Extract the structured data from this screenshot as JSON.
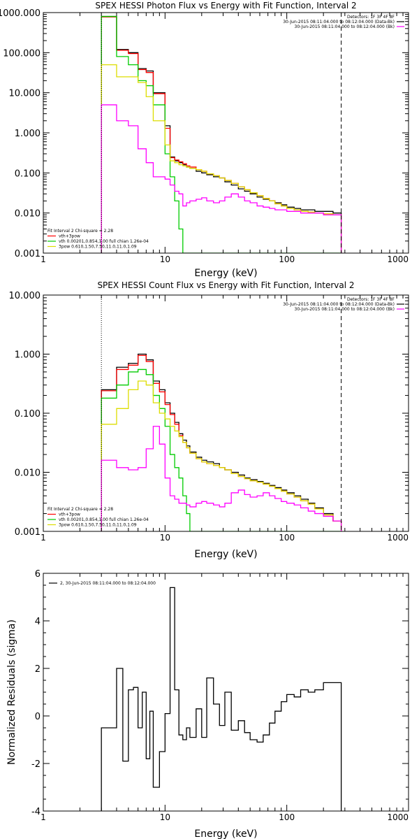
{
  "chart_data": [
    {
      "type": "line",
      "title": "SPEX HESSI Photon Flux vs Energy with Fit Function, Interval 2",
      "xlabel": "Energy (keV)",
      "ylabel": "",
      "xscale": "log",
      "yscale": "log",
      "xlim": [
        1,
        1000
      ],
      "ylim": [
        0.001,
        1000
      ],
      "xticks": [
        1,
        10,
        100,
        1000
      ],
      "xtick_labels": [
        "1",
        "10",
        "100",
        "1000"
      ],
      "yticks": [
        0.001,
        0.01,
        0.1,
        1,
        10,
        100,
        1000
      ],
      "ytick_labels": [
        "0.001",
        "0.010",
        "0.100",
        "1.000",
        "10.000",
        "100.000",
        "1000.000"
      ],
      "vlines": [
        {
          "x": 3.0,
          "style": "dotted",
          "color": "#000000"
        },
        {
          "x": 280,
          "style": "dashed",
          "color": "#000000"
        }
      ],
      "legend_top_right": [
        "Detectors: 1F 3F 4F 8F",
        "30-Jun-2015 08:11:04.000 to 08:12:04.000 (Data-Bk)",
        "30-Jun-2015 08:11:04.000 to 08:12:04.000 (Bk)"
      ],
      "legend_bottom_left": [
        "Fit Interval 2   Chi-square = 2.28",
        "vth+3pow",
        "vth 0.00201,0.854,1.00  full chian 1.26e-04",
        "3pow 0.610,1.50,7.50,11.0,11.0,1.09"
      ],
      "colors": {
        "data": "#000000",
        "total": "#ff0000",
        "vth": "#00cc00",
        "pow": "#dddd00",
        "bk": "#ff00ff"
      },
      "edges": [
        3.0,
        3.5,
        4.0,
        4.5,
        5.0,
        5.5,
        6.0,
        6.5,
        7.0,
        7.5,
        8.0,
        9.0,
        10.0,
        11.0,
        12.0,
        13.0,
        14.0,
        15.0,
        16.0,
        18.0,
        20.0,
        22.0,
        25.0,
        28.0,
        31.0,
        35.0,
        40.0,
        45.0,
        50.0,
        57.0,
        64.0,
        72.0,
        80.0,
        90.0,
        100.0,
        115.0,
        130.0,
        150.0,
        170.0,
        200.0,
        240.0,
        280.0
      ],
      "series": [
        {
          "name": "Data-Bk",
          "values": [
            800,
            800,
            120,
            120,
            100,
            100,
            40,
            40,
            35,
            35,
            10,
            10,
            1.5,
            0.25,
            0.2,
            0.18,
            0.16,
            0.14,
            0.13,
            0.11,
            0.1,
            0.09,
            0.08,
            0.075,
            0.06,
            0.05,
            0.04,
            0.035,
            0.03,
            0.025,
            0.022,
            0.02,
            0.018,
            0.016,
            0.014,
            0.013,
            0.012,
            0.012,
            0.011,
            0.011,
            0.01
          ]
        },
        {
          "name": "vth+3pow",
          "values": [
            780,
            780,
            115,
            115,
            95,
            95,
            38,
            38,
            32,
            32,
            9.5,
            9.5,
            1.3,
            0.24,
            0.21,
            0.19,
            0.17,
            0.15,
            0.14,
            0.12,
            0.11,
            0.095,
            0.085,
            0.075,
            0.065,
            0.055,
            0.045,
            0.038,
            0.032,
            0.027,
            0.023,
            0.02,
            0.017,
            0.015,
            0.013,
            0.012,
            0.011,
            0.0105,
            0.01,
            0.0095,
            0.009
          ]
        },
        {
          "name": "vth",
          "values": [
            800,
            800,
            80,
            80,
            50,
            50,
            20,
            20,
            15,
            15,
            5,
            5,
            0.3,
            0.08,
            0.02,
            0.004,
            0.001,
            0.001,
            0.001,
            0.001,
            0.001,
            0.001,
            0.001,
            0.001,
            0.001,
            0.001,
            0.001,
            0.001,
            0.001,
            0.001,
            0.001,
            0.001,
            0.001,
            0.001,
            0.001,
            0.001,
            0.001,
            0.001,
            0.001,
            0.001,
            0.001
          ]
        },
        {
          "name": "3pow",
          "values": [
            50,
            50,
            25,
            25,
            25,
            25,
            18,
            18,
            8,
            8,
            2,
            2,
            0.5,
            0.2,
            0.18,
            0.16,
            0.15,
            0.14,
            0.13,
            0.12,
            0.11,
            0.095,
            0.085,
            0.075,
            0.065,
            0.055,
            0.045,
            0.038,
            0.032,
            0.027,
            0.023,
            0.02,
            0.017,
            0.015,
            0.013,
            0.012,
            0.011,
            0.0105,
            0.01,
            0.0095,
            0.009
          ]
        },
        {
          "name": "Bk",
          "values": [
            5,
            5,
            2,
            2,
            1.5,
            1.5,
            0.4,
            0.4,
            0.18,
            0.18,
            0.08,
            0.08,
            0.07,
            0.05,
            0.035,
            0.03,
            0.015,
            0.018,
            0.02,
            0.022,
            0.024,
            0.02,
            0.018,
            0.02,
            0.025,
            0.03,
            0.025,
            0.02,
            0.018,
            0.015,
            0.014,
            0.013,
            0.012,
            0.012,
            0.011,
            0.011,
            0.01,
            0.01,
            0.01,
            0.009,
            0.009
          ]
        }
      ]
    },
    {
      "type": "line",
      "title": "SPEX HESSI Count Flux vs Energy with Fit Function, Interval 2",
      "xlabel": "Energy (keV)",
      "ylabel": "",
      "xscale": "log",
      "yscale": "log",
      "xlim": [
        1,
        1000
      ],
      "ylim": [
        0.001,
        10
      ],
      "xticks": [
        1,
        10,
        100,
        1000
      ],
      "xtick_labels": [
        "1",
        "10",
        "100",
        "1000"
      ],
      "yticks": [
        0.001,
        0.01,
        0.1,
        1,
        10
      ],
      "ytick_labels": [
        "0.001",
        "0.010",
        "0.100",
        "1.000",
        "10.000"
      ],
      "vlines": [
        {
          "x": 3.0,
          "style": "dotted",
          "color": "#000000"
        },
        {
          "x": 280,
          "style": "dashed",
          "color": "#000000"
        }
      ],
      "legend_top_right": [
        "Detectors: 1F 3F 4F 8F",
        "30-Jun-2015 08:11:04.000 to 08:12:04.000 (Data-Bk)",
        "30-Jun-2015 08:11:04.000 to 08:12:04.000 (Bk)"
      ],
      "legend_bottom_left": [
        "Fit Interval 2   Chi-square = 2.28",
        "vth+3pow",
        "vth 0.00201,0.854,1.00  full chian 1.26e-04",
        "3pow 0.610,1.50,7.50,11.0,11.0,1.09"
      ],
      "colors": {
        "data": "#000000",
        "total": "#ff0000",
        "vth": "#00cc00",
        "pow": "#dddd00",
        "bk": "#ff00ff"
      },
      "edges": [
        3.0,
        3.5,
        4.0,
        4.5,
        5.0,
        5.5,
        6.0,
        6.5,
        7.0,
        7.5,
        8.0,
        9.0,
        10.0,
        11.0,
        12.0,
        13.0,
        14.0,
        15.0,
        16.0,
        18.0,
        20.0,
        22.0,
        25.0,
        28.0,
        31.0,
        35.0,
        40.0,
        45.0,
        50.0,
        57.0,
        64.0,
        72.0,
        80.0,
        90.0,
        100.0,
        115.0,
        130.0,
        150.0,
        170.0,
        200.0,
        240.0,
        280.0
      ],
      "series": [
        {
          "name": "Data-Bk",
          "values": [
            0.25,
            0.25,
            0.6,
            0.6,
            0.7,
            0.7,
            1.0,
            1.0,
            0.8,
            0.8,
            0.35,
            0.25,
            0.15,
            0.1,
            0.07,
            0.045,
            0.035,
            0.028,
            0.022,
            0.018,
            0.016,
            0.015,
            0.014,
            0.012,
            0.011,
            0.01,
            0.009,
            0.008,
            0.0075,
            0.007,
            0.0065,
            0.006,
            0.0055,
            0.005,
            0.0045,
            0.004,
            0.0035,
            0.003,
            0.0025,
            0.002,
            0.0015
          ]
        },
        {
          "name": "vth+3pow",
          "values": [
            0.24,
            0.24,
            0.55,
            0.55,
            0.65,
            0.65,
            0.95,
            0.95,
            0.75,
            0.75,
            0.32,
            0.23,
            0.14,
            0.095,
            0.065,
            0.042,
            0.032,
            0.026,
            0.021,
            0.017,
            0.015,
            0.014,
            0.013,
            0.012,
            0.011,
            0.0095,
            0.0085,
            0.0078,
            0.0072,
            0.0068,
            0.0063,
            0.0058,
            0.0053,
            0.0048,
            0.0043,
            0.0038,
            0.0033,
            0.0029,
            0.0024,
            0.0019,
            0.0015
          ]
        },
        {
          "name": "vth",
          "values": [
            0.18,
            0.18,
            0.3,
            0.3,
            0.5,
            0.5,
            0.55,
            0.55,
            0.45,
            0.45,
            0.2,
            0.12,
            0.06,
            0.02,
            0.012,
            0.008,
            0.004,
            0.002,
            0.001,
            0.001,
            0.001,
            0.001,
            0.001,
            0.001,
            0.001,
            0.001,
            0.001,
            0.001,
            0.001,
            0.001,
            0.001,
            0.001,
            0.001,
            0.001,
            0.001,
            0.001,
            0.001,
            0.001,
            0.001,
            0.001,
            0.001
          ]
        },
        {
          "name": "3pow",
          "values": [
            0.065,
            0.065,
            0.12,
            0.12,
            0.25,
            0.25,
            0.35,
            0.35,
            0.3,
            0.3,
            0.15,
            0.1,
            0.08,
            0.06,
            0.05,
            0.04,
            0.032,
            0.026,
            0.021,
            0.017,
            0.015,
            0.014,
            0.013,
            0.012,
            0.011,
            0.0095,
            0.0085,
            0.0078,
            0.0072,
            0.0068,
            0.0063,
            0.0058,
            0.0053,
            0.0048,
            0.0043,
            0.0038,
            0.0033,
            0.0029,
            0.0024,
            0.0019,
            0.0015
          ]
        },
        {
          "name": "Bk",
          "values": [
            0.016,
            0.016,
            0.012,
            0.012,
            0.011,
            0.011,
            0.012,
            0.012,
            0.025,
            0.025,
            0.06,
            0.03,
            0.008,
            0.004,
            0.0035,
            0.003,
            0.003,
            0.0028,
            0.0026,
            0.003,
            0.0032,
            0.003,
            0.0028,
            0.0026,
            0.003,
            0.0045,
            0.005,
            0.0042,
            0.0038,
            0.004,
            0.0045,
            0.004,
            0.0036,
            0.0032,
            0.003,
            0.0028,
            0.0025,
            0.0022,
            0.002,
            0.0018,
            0.0015
          ]
        }
      ]
    },
    {
      "type": "line",
      "title": "",
      "xlabel": "Energy (keV)",
      "ylabel": "Normalized Residuals (sigma)",
      "xscale": "log",
      "yscale": "linear",
      "xlim": [
        1,
        1000
      ],
      "ylim": [
        -4,
        6
      ],
      "xticks": [
        1,
        10,
        100,
        1000
      ],
      "xtick_labels": [
        "1",
        "10",
        "100",
        "1000"
      ],
      "yticks": [
        -4,
        -2,
        0,
        2,
        4,
        6
      ],
      "ytick_labels": [
        "-4",
        "-2",
        "0",
        "2",
        "4",
        "6"
      ],
      "legend": [
        "2, 30-Jun-2015 08:11:04.000 to 08:12:04.000"
      ],
      "edges": [
        3.0,
        3.5,
        4.0,
        4.5,
        5.0,
        5.5,
        6.0,
        6.5,
        7.0,
        7.5,
        8.0,
        9.0,
        10.0,
        11.0,
        12.0,
        13.0,
        14.0,
        15.0,
        16.0,
        18.0,
        20.0,
        22.0,
        25.0,
        28.0,
        31.0,
        35.0,
        40.0,
        45.0,
        50.0,
        57.0,
        64.0,
        72.0,
        80.0,
        90.0,
        100.0,
        115.0,
        130.0,
        150.0,
        170.0,
        200.0,
        240.0,
        280.0
      ],
      "series": [
        {
          "name": "2, 30-Jun-2015 08:11:04.000 to 08:12:04.000",
          "values": [
            -0.5,
            -0.5,
            2.0,
            -1.9,
            1.1,
            1.2,
            -0.5,
            1.0,
            -1.8,
            0.2,
            -3.0,
            -1.5,
            0.1,
            5.4,
            1.1,
            -0.8,
            -1.0,
            -0.5,
            -0.9,
            0.3,
            -0.9,
            1.6,
            0.5,
            -0.4,
            1.0,
            -0.6,
            -0.2,
            -0.7,
            -1.0,
            -1.1,
            -0.8,
            -0.3,
            0.2,
            0.6,
            0.9,
            0.8,
            1.1,
            1.0,
            1.1,
            1.4,
            1.4
          ]
        }
      ]
    }
  ]
}
